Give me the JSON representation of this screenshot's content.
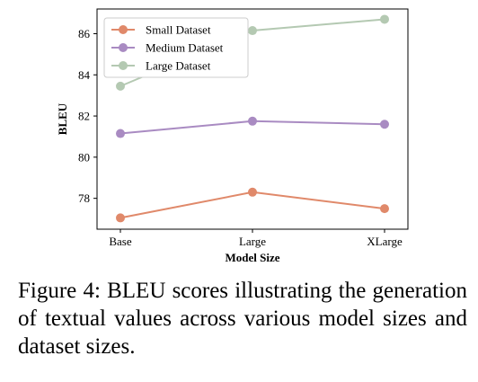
{
  "chart_data": {
    "type": "line",
    "categories": [
      "Base",
      "Large",
      "XLarge"
    ],
    "series": [
      {
        "name": "Small Dataset",
        "values": [
          77.05,
          78.3,
          77.5
        ],
        "color": "#e0896a"
      },
      {
        "name": "Medium Dataset",
        "values": [
          81.15,
          81.75,
          81.6
        ],
        "color": "#a98bc2"
      },
      {
        "name": "Large Dataset",
        "values": [
          83.45,
          86.15,
          86.7
        ],
        "color": "#b4c9b2"
      }
    ],
    "title": "",
    "xlabel": "Model Size",
    "ylabel": "BLEU",
    "ylim": [
      76.5,
      87.2
    ],
    "yticks": [
      78,
      80,
      82,
      84,
      86
    ],
    "grid": false,
    "legend": "top-left"
  },
  "caption": "Figure 4:  BLEU scores illustrating the generation of textual values across various model sizes and dataset sizes."
}
